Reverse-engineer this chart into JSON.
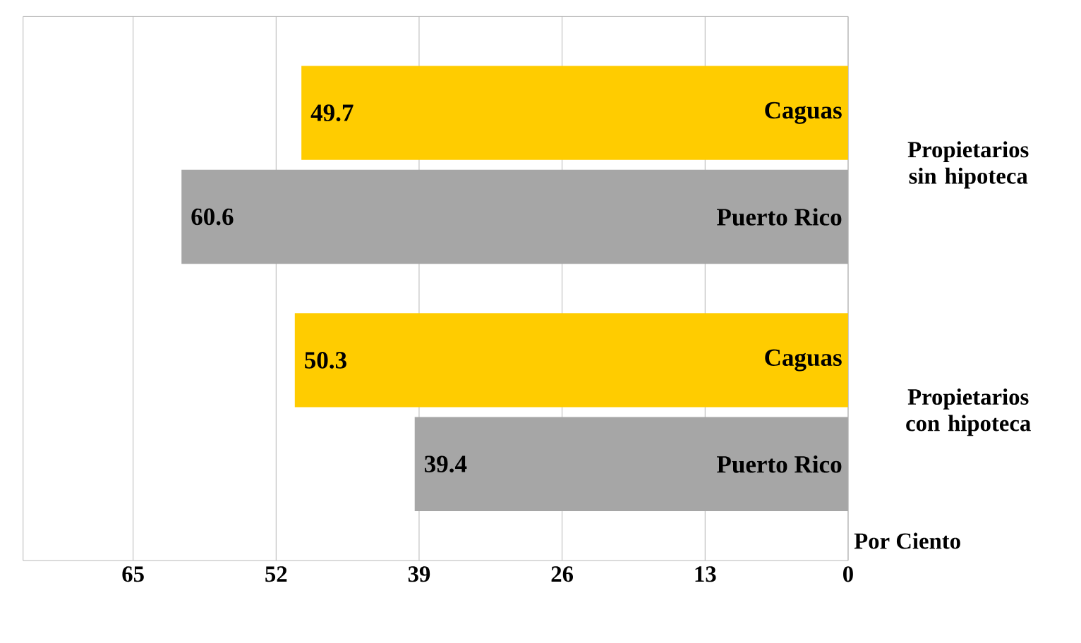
{
  "chart_data": {
    "type": "bar",
    "orientation": "horizontal",
    "xlabel": "Por Ciento",
    "categories": [
      "Propietarios sin hipoteca",
      "Propietarios con hipoteca"
    ],
    "series": [
      {
        "name": "Caguas",
        "color": "#ffcc00",
        "values": [
          49.7,
          50.3
        ]
      },
      {
        "name": "Puerto Rico",
        "color": "#a6a6a6",
        "values": [
          60.6,
          39.4
        ]
      }
    ],
    "xlim": [
      75,
      0
    ],
    "xticks": [
      0,
      13,
      26,
      39,
      52,
      65
    ],
    "grid": "x",
    "data_labels": true
  }
}
